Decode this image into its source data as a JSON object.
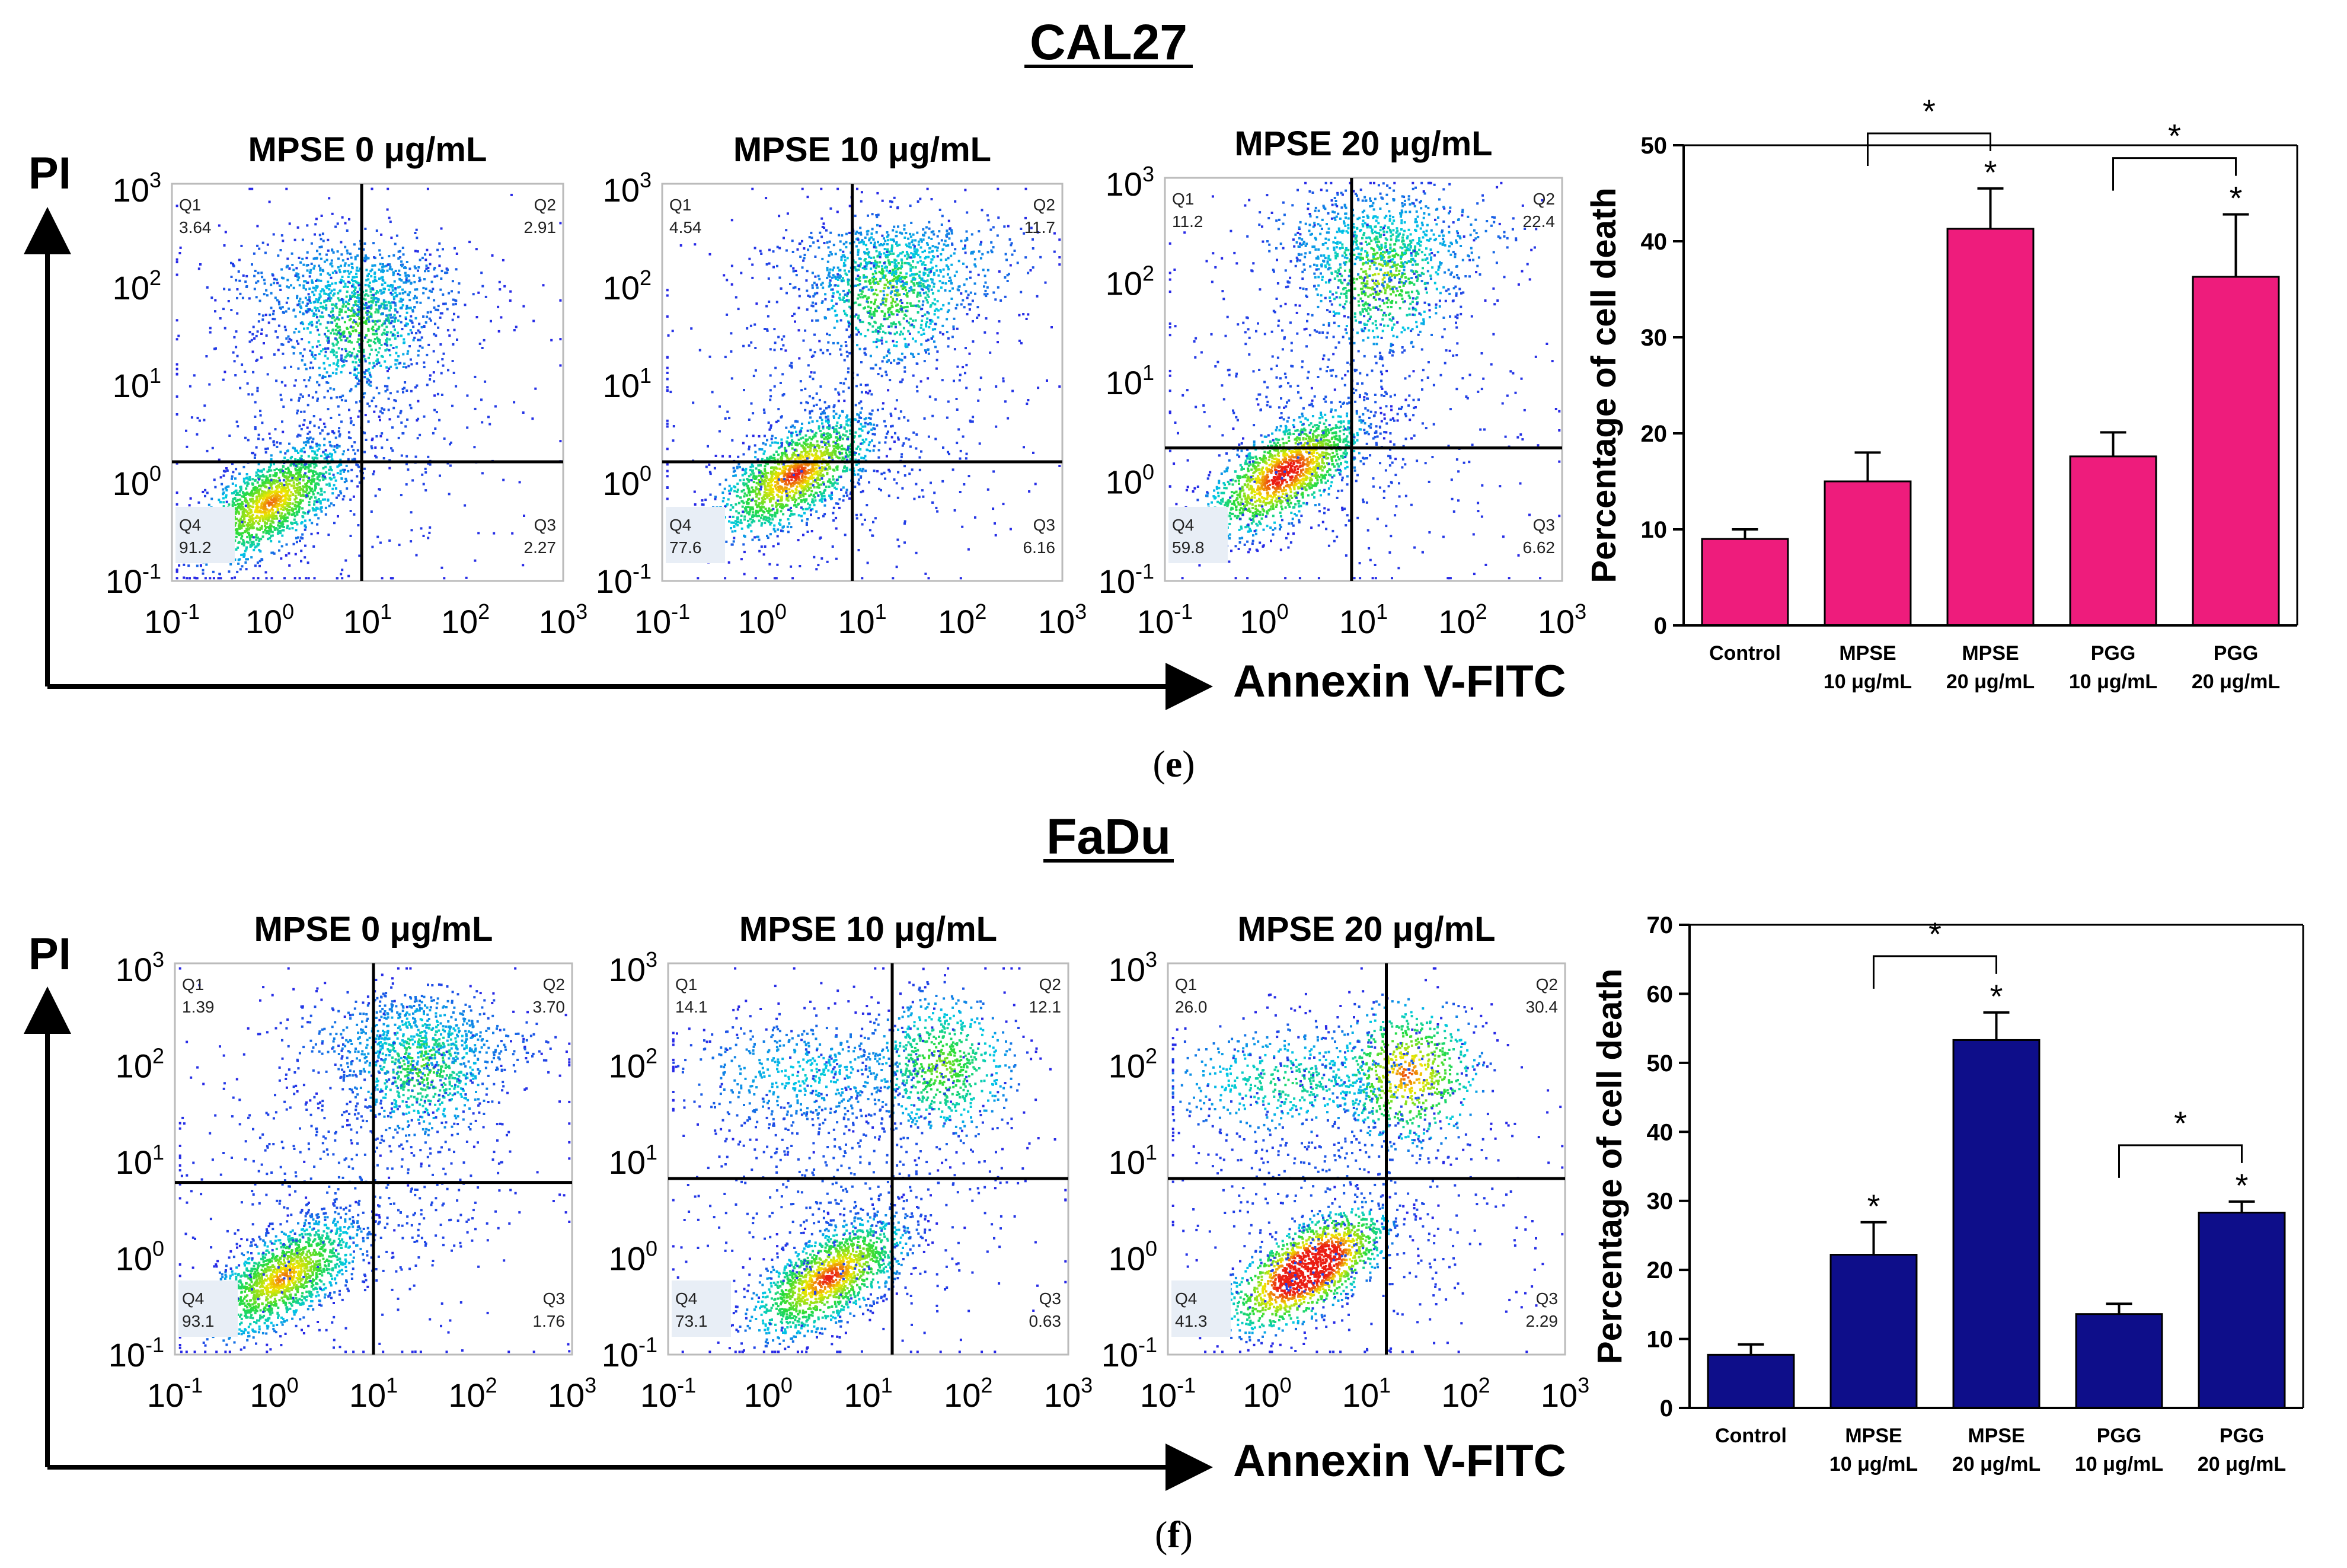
{
  "panels": [
    {
      "label": "(e)",
      "label_paren_open": "(",
      "label_letter": "e",
      "label_paren_close": ")",
      "cell_line": "CAL27",
      "y_axis_label": "PI",
      "x_axis_label": "Annexin V-FITC",
      "bar_color": "#ee1c7c",
      "flow_plots": [
        {
          "title": "MPSE 0 μg/mL",
          "q1": "3.64",
          "q2": "2.91",
          "q3": "2.27",
          "q4": "91.2",
          "hline": 0.3,
          "vline": 0.485,
          "pop": {
            "neg": [
              0.25,
              0.2
            ],
            "dead": [
              0.47,
              0.65
            ],
            "late": [
              0.45,
              0.75
            ]
          },
          "intensity": 0.9
        },
        {
          "title": "MPSE 10 μg/mL",
          "q1": "4.54",
          "q2": "11.7",
          "q3": "6.16",
          "q4": "77.6",
          "hline": 0.3,
          "vline": 0.475,
          "pop": {
            "neg": [
              0.33,
              0.27
            ],
            "dead": [
              0.56,
              0.73
            ],
            "late": [
              0.6,
              0.8
            ]
          },
          "intensity": 1.0
        },
        {
          "title": "MPSE 20 μg/mL",
          "q1": "11.2",
          "q2": "22.4",
          "q3": "6.62",
          "q4": "59.8",
          "hline": 0.33,
          "vline": 0.47,
          "pop": {
            "neg": [
              0.3,
              0.27
            ],
            "dead": [
              0.54,
              0.76
            ],
            "late": [
              0.55,
              0.85
            ]
          },
          "intensity": 1.1
        }
      ],
      "chart_data": {
        "type": "bar",
        "title": "CAL27",
        "ylabel": "Percentage of cell death",
        "xlabel": "",
        "ylim": [
          0,
          50
        ],
        "yticks": [
          0,
          10,
          20,
          30,
          40,
          50
        ],
        "categories": [
          "Control",
          "MPSE\n10 μg/mL",
          "MPSE\n20 μg/mL",
          "PGG\n10 μg/mL",
          "PGG\n20 μg/mL"
        ],
        "values": [
          9.0,
          15.0,
          41.3,
          17.6,
          36.3
        ],
        "errors": [
          1.0,
          3.0,
          4.2,
          2.5,
          6.5
        ],
        "bar_star": [
          false,
          false,
          true,
          false,
          true
        ],
        "brackets": [
          {
            "from": 1,
            "to": 2,
            "label": "*"
          },
          {
            "from": 3,
            "to": 4,
            "label": "*"
          }
        ]
      }
    },
    {
      "label": "(f)",
      "label_paren_open": "(",
      "label_letter": "f",
      "label_paren_close": ")",
      "cell_line": "FaDu",
      "y_axis_label": "PI",
      "x_axis_label": "Annexin V-FITC",
      "bar_color": "#0e0e8a",
      "flow_plots": [
        {
          "title": "MPSE 0 μg/mL",
          "q1": "1.39",
          "q2": "3.70",
          "q3": "1.76",
          "q4": "93.1",
          "hline": 0.44,
          "vline": 0.5,
          "pop": {
            "neg": [
              0.27,
              0.2
            ],
            "dead": [
              0.62,
              0.74
            ],
            "late": [
              0.6,
              0.8
            ]
          },
          "intensity": 0.9
        },
        {
          "title": "MPSE 10 μg/mL",
          "q1": "14.1",
          "q2": "12.1",
          "q3": "0.63",
          "q4": "73.1",
          "hline": 0.45,
          "vline": 0.56,
          "pop": {
            "neg": [
              0.4,
              0.2
            ],
            "dead": [
              0.68,
              0.74
            ],
            "late": [
              0.35,
              0.72
            ]
          },
          "intensity": 1.0
        },
        {
          "title": "MPSE 20 μg/mL",
          "q1": "26.0",
          "q2": "30.4",
          "q3": "2.29",
          "q4": "41.3",
          "hline": 0.45,
          "vline": 0.55,
          "pop": {
            "neg": [
              0.35,
              0.22
            ],
            "dead": [
              0.6,
              0.72
            ],
            "late": [
              0.3,
              0.7
            ]
          },
          "intensity": 1.4
        }
      ],
      "chart_data": {
        "type": "bar",
        "title": "FaDu",
        "ylabel": "Percentage of cell death",
        "xlabel": "",
        "ylim": [
          0,
          70
        ],
        "yticks": [
          0,
          10,
          20,
          30,
          40,
          50,
          60,
          70
        ],
        "categories": [
          "Control",
          "MPSE\n10 μg/mL",
          "MPSE\n20 μg/mL",
          "PGG\n10 μg/mL",
          "PGG\n20 μg/mL"
        ],
        "values": [
          7.7,
          22.2,
          53.3,
          13.6,
          28.3
        ],
        "errors": [
          1.5,
          4.7,
          4.0,
          1.5,
          1.6
        ],
        "bar_star": [
          false,
          true,
          true,
          false,
          true
        ],
        "brackets": [
          {
            "from": 1,
            "to": 2,
            "label": "*"
          },
          {
            "from": 3,
            "to": 4,
            "label": "*"
          }
        ]
      }
    }
  ],
  "flow_axes": {
    "tick_base": "10",
    "tick_exponents": [
      "-1",
      "0",
      "1",
      "2",
      "3"
    ],
    "quadrant_labels": [
      "Q1",
      "Q2",
      "Q3",
      "Q4"
    ]
  }
}
